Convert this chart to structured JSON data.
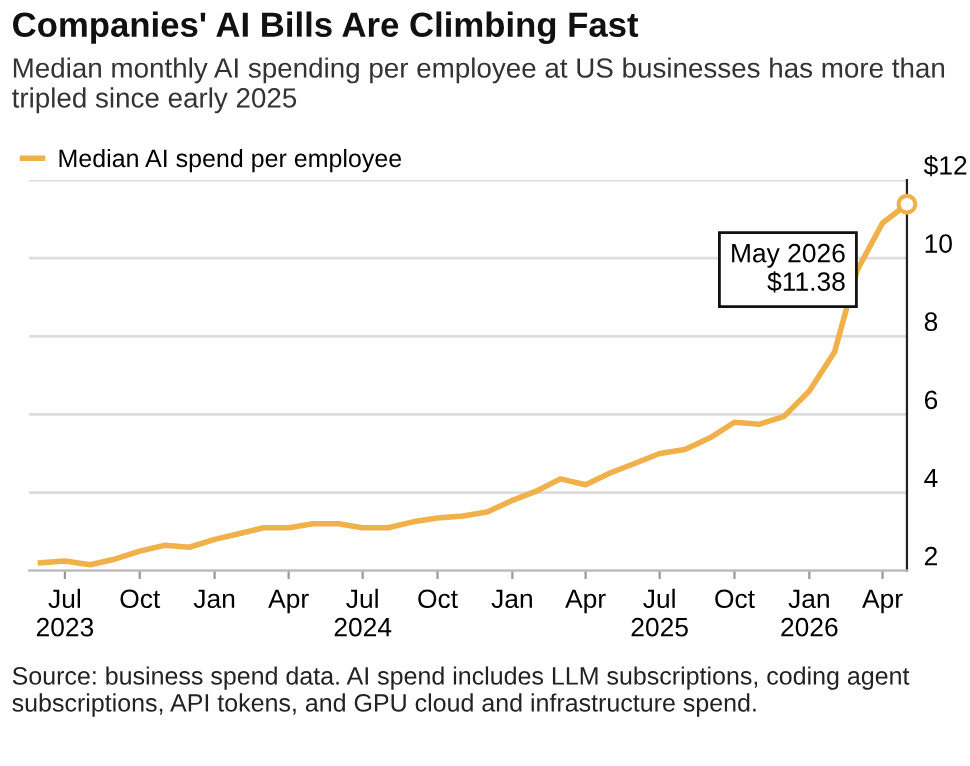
{
  "chart_data": {
    "type": "line",
    "title": "Companies' AI Bills Are Climbing Fast",
    "subtitle": "Median monthly AI spending per employee at US businesses has more than tripled since early 2025",
    "x": [
      "2023-06",
      "2023-07",
      "2023-08",
      "2023-09",
      "2023-10",
      "2023-11",
      "2023-12",
      "2024-01",
      "2024-02",
      "2024-03",
      "2024-04",
      "2024-05",
      "2024-06",
      "2024-07",
      "2024-08",
      "2024-09",
      "2024-10",
      "2024-11",
      "2024-12",
      "2025-01",
      "2025-02",
      "2025-03",
      "2025-04",
      "2025-05",
      "2025-06",
      "2025-07",
      "2025-08",
      "2025-09",
      "2025-10",
      "2025-11",
      "2025-12",
      "2026-01",
      "2026-02",
      "2026-03",
      "2026-04",
      "2026-05"
    ],
    "series": [
      {
        "name": "Median AI spend per employee",
        "color": "#f0b04a",
        "values": [
          2.2,
          2.25,
          2.15,
          2.3,
          2.5,
          2.65,
          2.6,
          2.8,
          2.95,
          3.1,
          3.1,
          3.2,
          3.2,
          3.1,
          3.1,
          3.25,
          3.35,
          3.4,
          3.5,
          3.8,
          4.05,
          4.35,
          4.2,
          4.5,
          4.75,
          5.0,
          5.1,
          5.4,
          5.8,
          5.75,
          5.95,
          6.6,
          7.6,
          9.7,
          10.9,
          11.38
        ]
      }
    ],
    "xlim": [
      "2023-05-18",
      "2026-05"
    ],
    "xticks": [
      {
        "value": "2023-07",
        "label": "Jul\n2023"
      },
      {
        "value": "2023-10",
        "label": "Oct"
      },
      {
        "value": "2024-01",
        "label": "Jan"
      },
      {
        "value": "2024-04",
        "label": "Apr"
      },
      {
        "value": "2024-07",
        "label": "Jul\n2024"
      },
      {
        "value": "2024-10",
        "label": "Oct"
      },
      {
        "value": "2025-01",
        "label": "Jan"
      },
      {
        "value": "2025-04",
        "label": "Apr"
      },
      {
        "value": "2025-07",
        "label": "Jul\n2025"
      },
      {
        "value": "2025-10",
        "label": "Oct"
      },
      {
        "value": "2026-01",
        "label": "Jan\n2026"
      },
      {
        "value": "2026-04",
        "label": "Apr"
      }
    ],
    "ylim": [
      2,
      12
    ],
    "yticks": [
      2,
      4,
      6,
      8,
      10,
      {
        "value": 12,
        "label": "$12"
      }
    ],
    "grid": "y",
    "legend": "top left",
    "annotations": [
      {
        "text": "May 2026\n$11.38",
        "x": "2026-05",
        "y": 11.38
      },
      "Source: business spend data. AI spend includes LLM subscriptions, coding agent subscriptions, API tokens, and GPU cloud and infrastructure spend."
    ]
  }
}
